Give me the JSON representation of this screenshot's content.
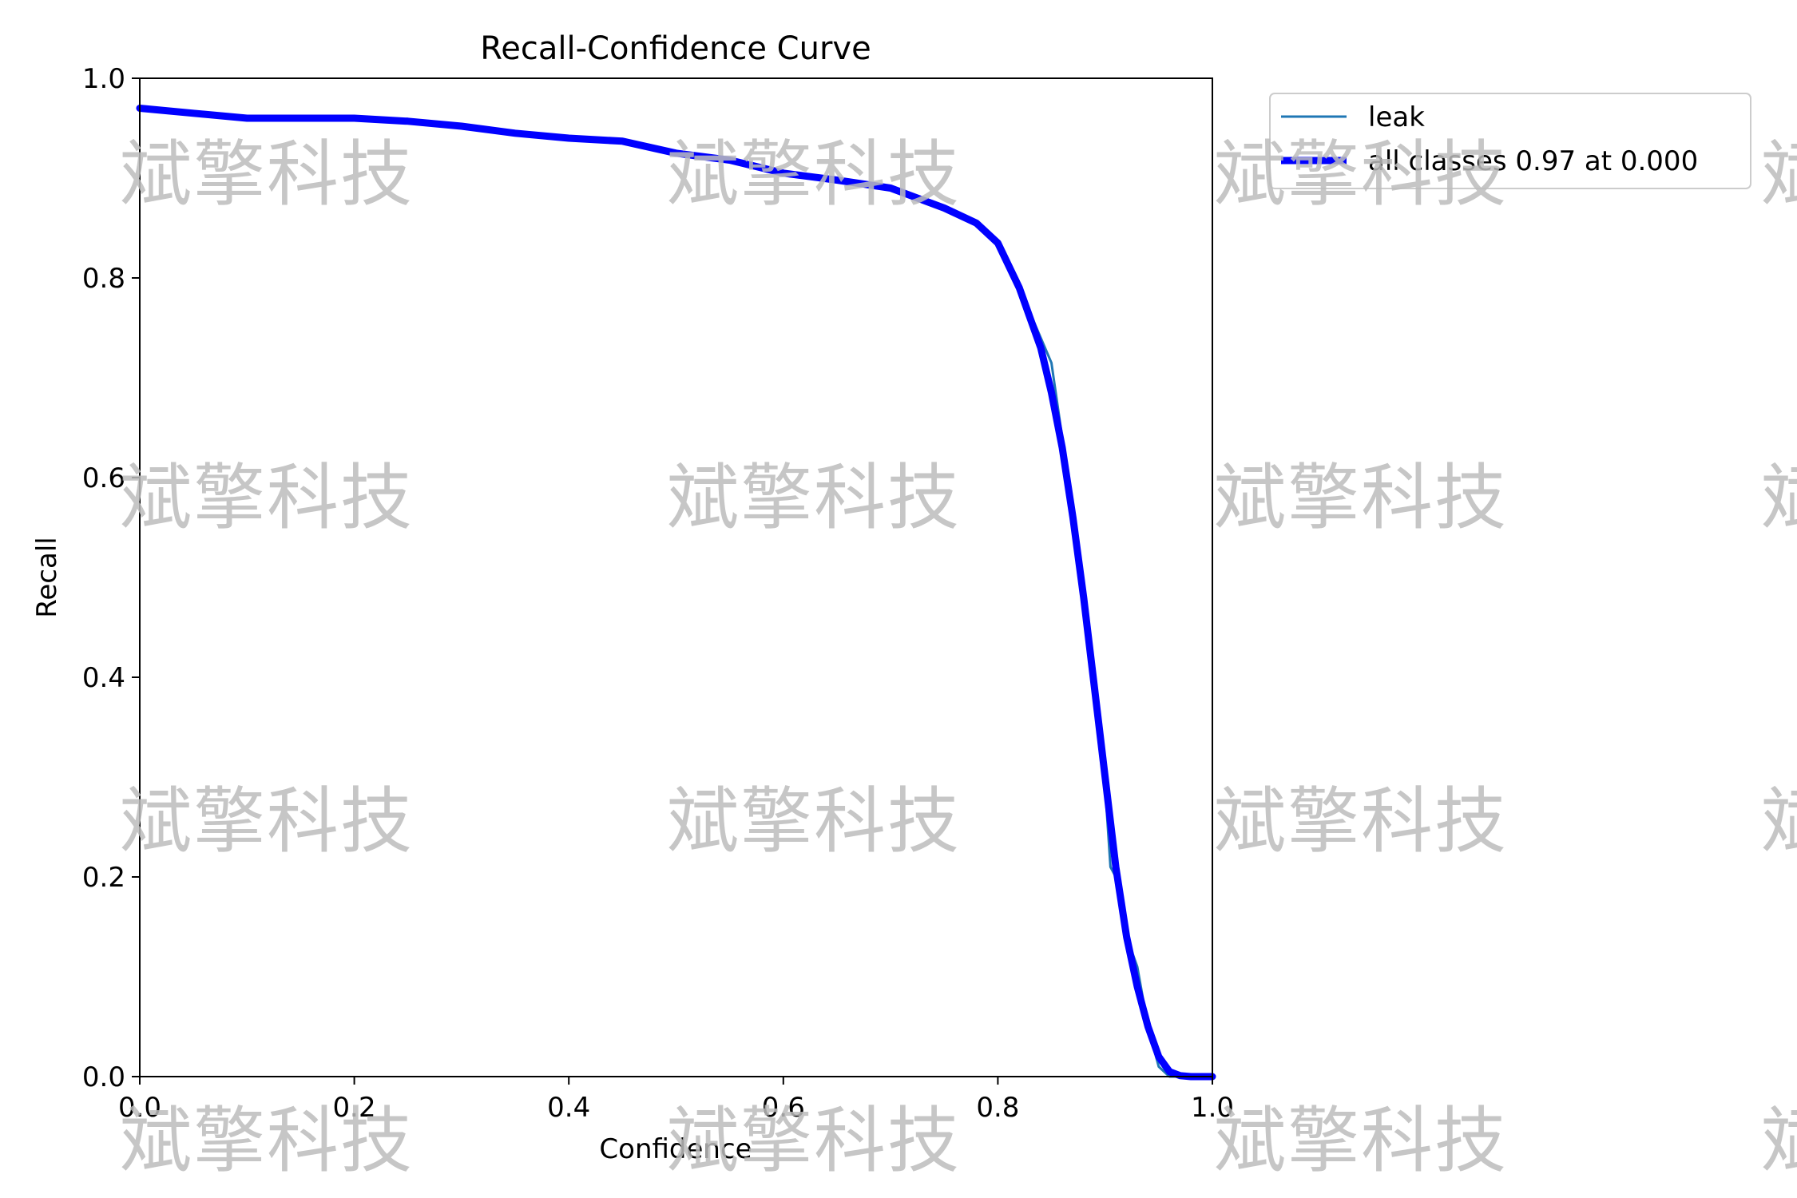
{
  "chart_data": {
    "type": "line",
    "title": "Recall-Confidence Curve",
    "xlabel": "Confidence",
    "ylabel": "Recall",
    "xlim": [
      0.0,
      1.0
    ],
    "ylim": [
      0.0,
      1.0
    ],
    "xticks": [
      "0.0",
      "0.2",
      "0.4",
      "0.6",
      "0.8",
      "1.0"
    ],
    "yticks": [
      "0.0",
      "0.2",
      "0.4",
      "0.6",
      "0.8",
      "1.0"
    ],
    "grid": false,
    "legend_position": "outside-top-right",
    "series": [
      {
        "name": "leak",
        "color": "#1f77b4",
        "x": [
          0.0,
          0.05,
          0.1,
          0.15,
          0.2,
          0.25,
          0.3,
          0.35,
          0.4,
          0.45,
          0.5,
          0.55,
          0.6,
          0.65,
          0.7,
          0.75,
          0.78,
          0.8,
          0.82,
          0.84,
          0.85,
          0.86,
          0.87,
          0.88,
          0.89,
          0.9,
          0.905,
          0.91,
          0.92,
          0.93,
          0.94,
          0.95,
          0.96,
          0.97,
          0.98,
          1.0
        ],
        "y": [
          0.97,
          0.965,
          0.96,
          0.96,
          0.96,
          0.957,
          0.952,
          0.945,
          0.94,
          0.937,
          0.925,
          0.918,
          0.905,
          0.898,
          0.89,
          0.87,
          0.855,
          0.835,
          0.79,
          0.74,
          0.715,
          0.64,
          0.57,
          0.48,
          0.39,
          0.29,
          0.21,
          0.2,
          0.14,
          0.11,
          0.05,
          0.01,
          0.0,
          0.0,
          0.0,
          0.0
        ]
      },
      {
        "name": "all classes 0.97 at 0.000",
        "color": "#0000ff",
        "x": [
          0.0,
          0.05,
          0.1,
          0.15,
          0.2,
          0.25,
          0.3,
          0.35,
          0.4,
          0.45,
          0.5,
          0.55,
          0.6,
          0.65,
          0.7,
          0.75,
          0.78,
          0.8,
          0.82,
          0.84,
          0.85,
          0.86,
          0.87,
          0.88,
          0.89,
          0.9,
          0.91,
          0.92,
          0.93,
          0.94,
          0.95,
          0.96,
          0.97,
          0.98,
          1.0
        ],
        "y": [
          0.97,
          0.965,
          0.96,
          0.96,
          0.96,
          0.957,
          0.952,
          0.945,
          0.94,
          0.937,
          0.925,
          0.918,
          0.905,
          0.898,
          0.89,
          0.87,
          0.855,
          0.835,
          0.79,
          0.73,
          0.685,
          0.63,
          0.56,
          0.48,
          0.39,
          0.3,
          0.21,
          0.14,
          0.09,
          0.05,
          0.02,
          0.005,
          0.001,
          0.0,
          0.0
        ]
      }
    ]
  },
  "watermark_text": "斌擎科技"
}
